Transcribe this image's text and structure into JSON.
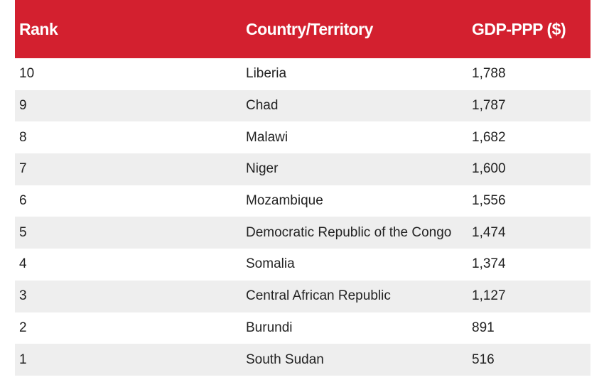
{
  "table": {
    "headers": {
      "rank": "Rank",
      "country": "Country/Territory",
      "gdp": "GDP-PPP ($)"
    },
    "rows": [
      {
        "rank": "10",
        "country": "Liberia",
        "gdp": "1,788"
      },
      {
        "rank": "9",
        "country": "Chad",
        "gdp": "1,787"
      },
      {
        "rank": "8",
        "country": "Malawi",
        "gdp": "1,682"
      },
      {
        "rank": "7",
        "country": "Niger",
        "gdp": "1,600"
      },
      {
        "rank": "6",
        "country": "Mozambique",
        "gdp": "1,556"
      },
      {
        "rank": "5",
        "country": "Democratic Republic of the Congo",
        "gdp": "1,474"
      },
      {
        "rank": "4",
        "country": "Somalia",
        "gdp": "1,374"
      },
      {
        "rank": "3",
        "country": "Central African Republic",
        "gdp": "1,127"
      },
      {
        "rank": "2",
        "country": "Burundi",
        "gdp": "891"
      },
      {
        "rank": "1",
        "country": "South Sudan",
        "gdp": "516"
      }
    ]
  },
  "colors": {
    "header_bg": "#d3202f",
    "header_text": "#ffffff",
    "row_alt_bg": "#eeeeee"
  }
}
